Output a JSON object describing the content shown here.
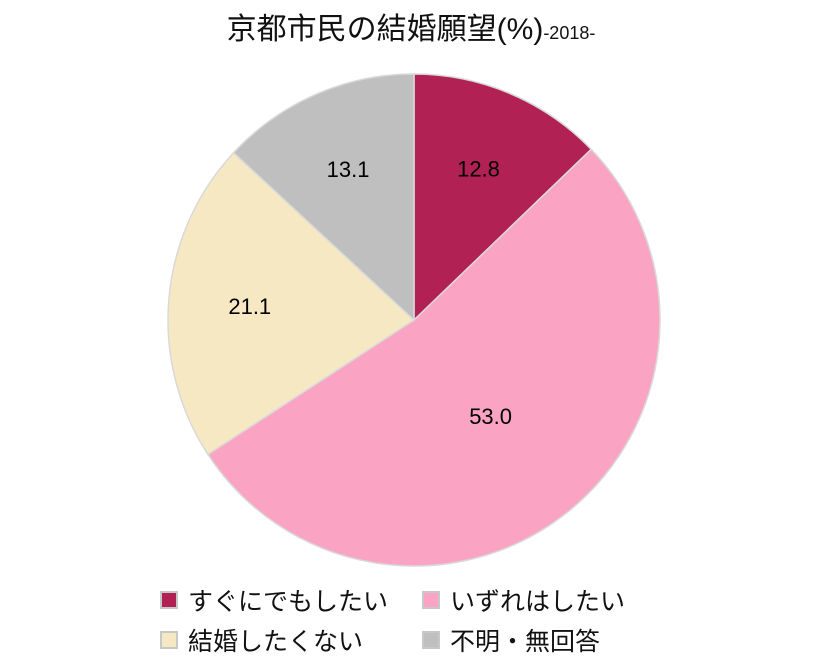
{
  "title": {
    "main": "京都市民の結婚願望",
    "unit": "(%)",
    "year": "-2018-"
  },
  "chart_data": {
    "type": "pie",
    "title": "京都市民の結婚願望(%)-2018-",
    "categories": [
      "すぐにでもしたい",
      "いずれはしたい",
      "結婚したくない",
      "不明・無回答"
    ],
    "values": [
      12.8,
      53.0,
      21.1,
      13.1
    ],
    "labels": [
      "12.8",
      "53.0",
      "21.1",
      "13.1"
    ],
    "colors": [
      "#b22153",
      "#fba3c3",
      "#f6e8c3",
      "#bfbfbf"
    ],
    "start_angle": "12 o'clock",
    "direction": "clockwise",
    "legend_position": "bottom"
  },
  "legend": {
    "items": [
      {
        "label": "すぐにでもしたい",
        "color": "#b22153"
      },
      {
        "label": "いずれはしたい",
        "color": "#fba3c3"
      },
      {
        "label": "結婚したくない",
        "color": "#f6e8c3"
      },
      {
        "label": "不明・無回答",
        "color": "#bfbfbf"
      }
    ]
  }
}
